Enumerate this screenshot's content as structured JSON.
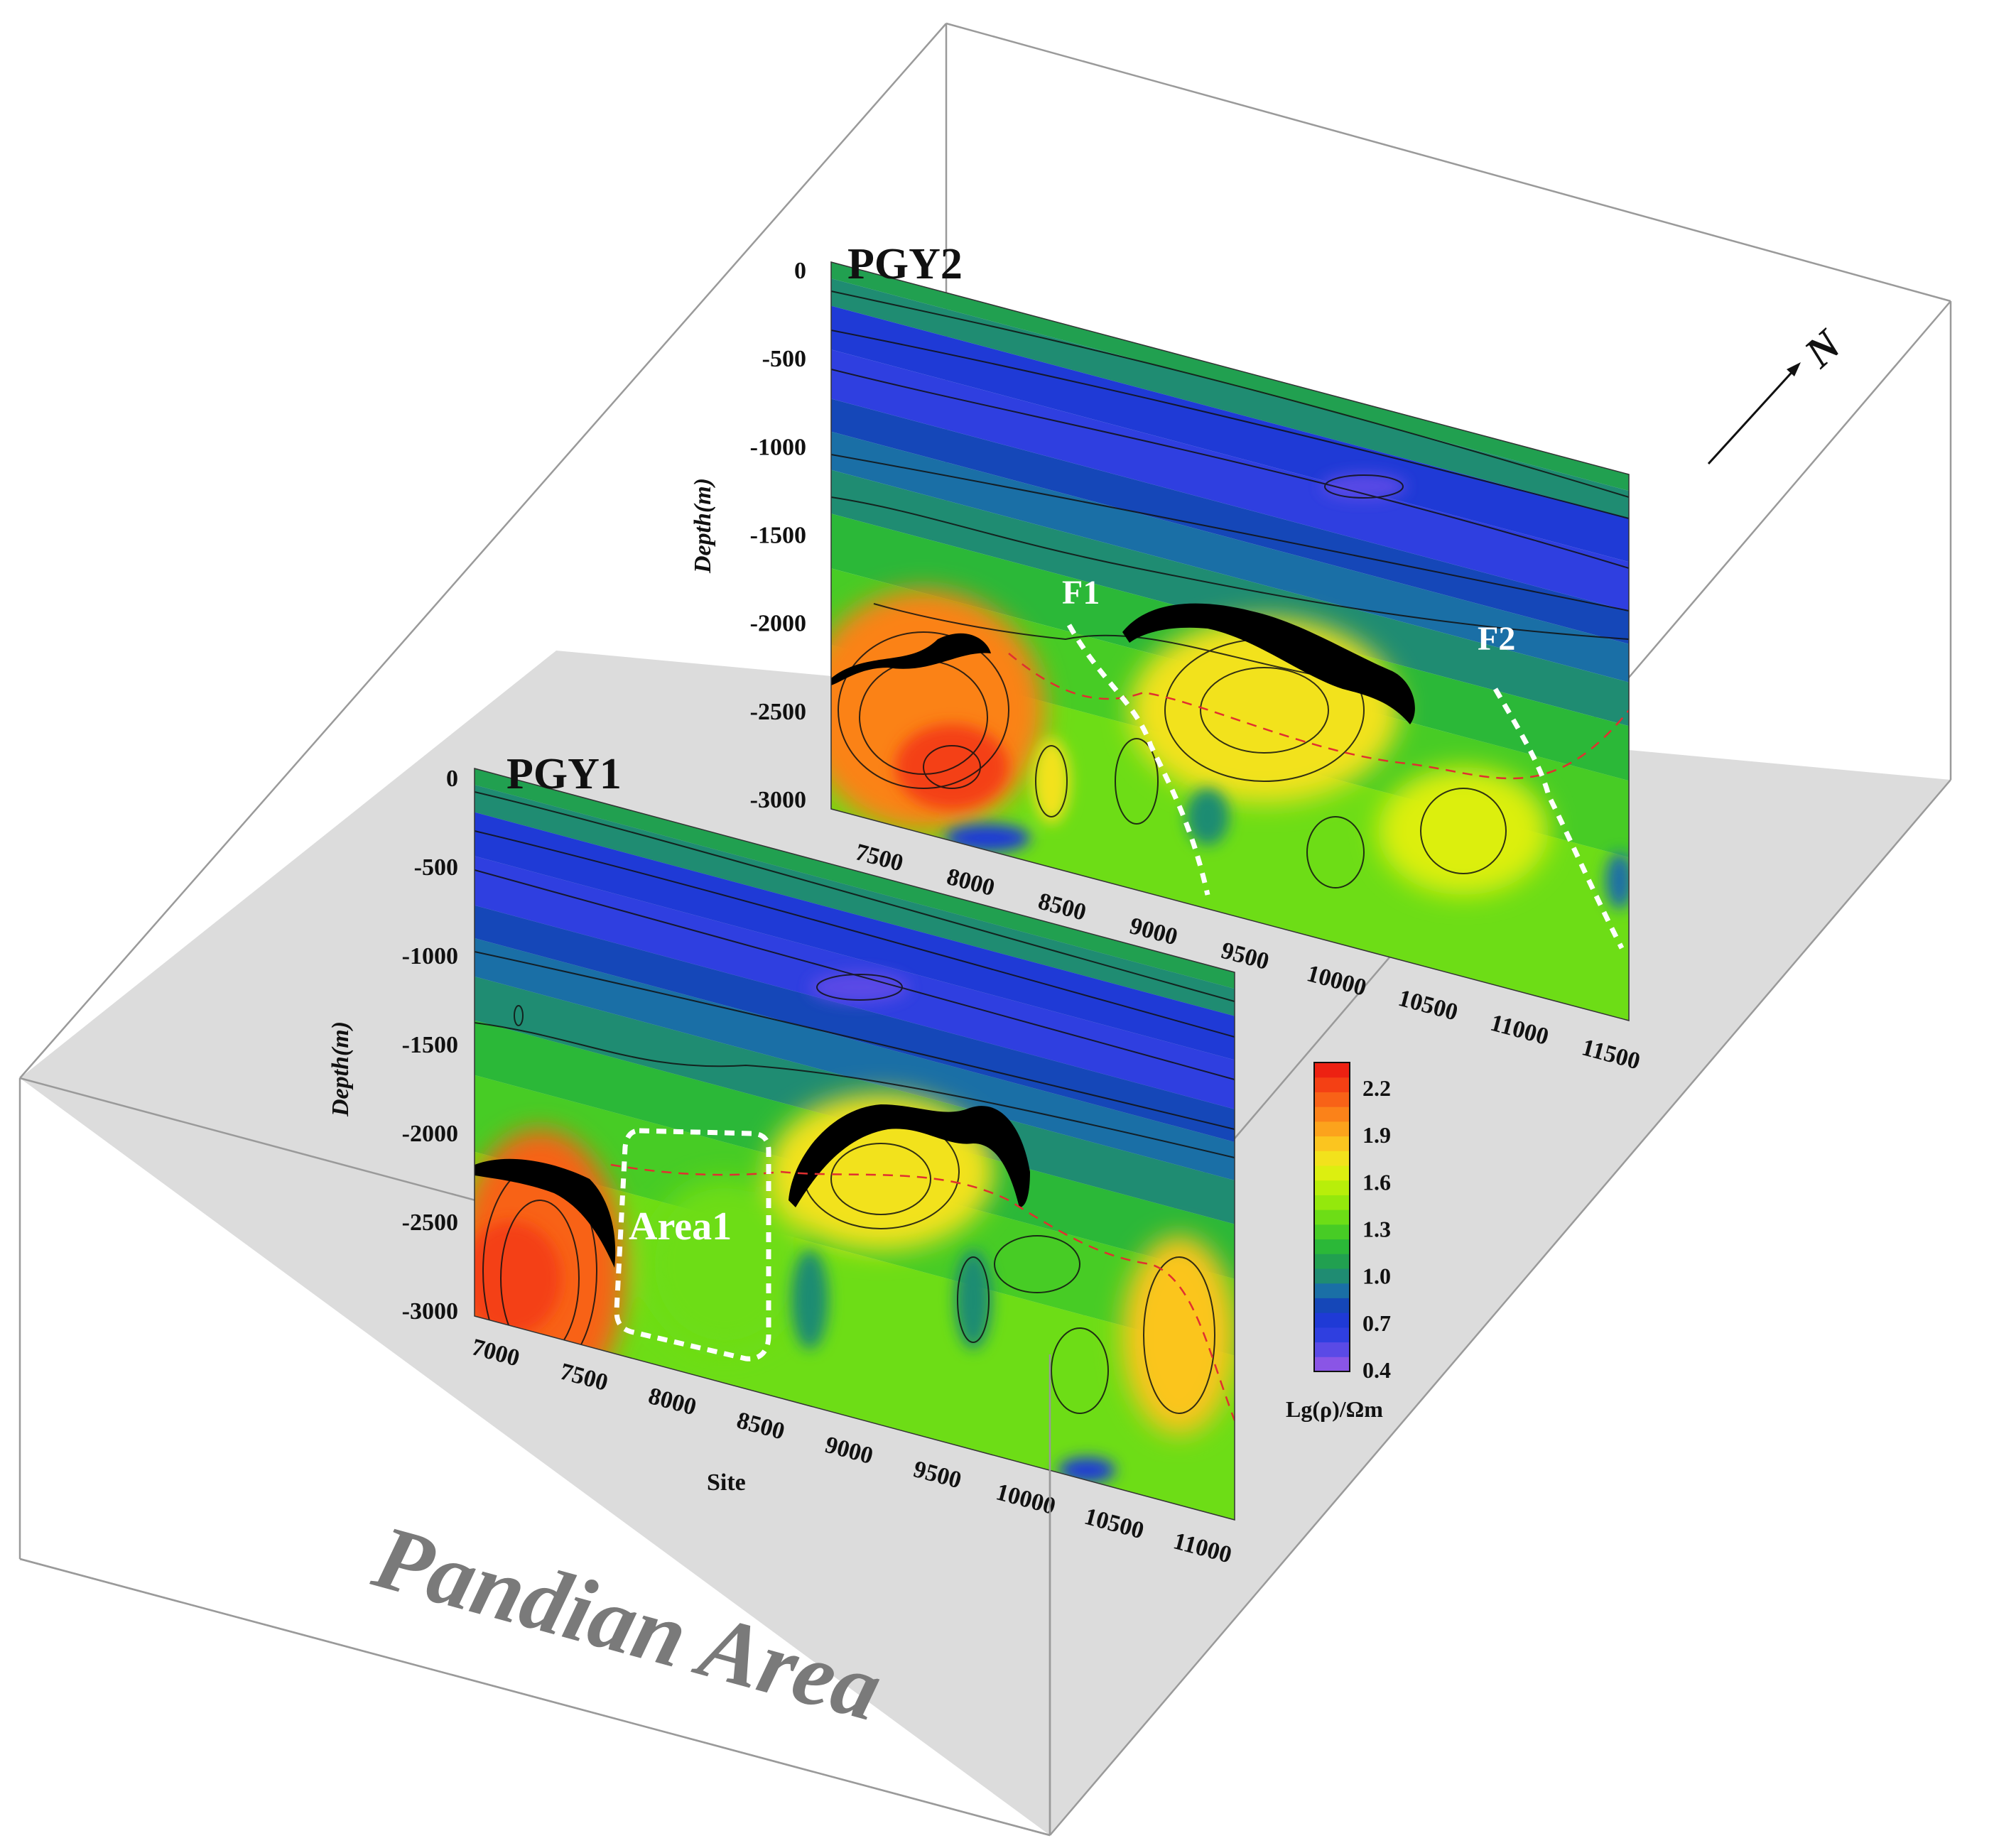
{
  "region_label": "Pandian Area",
  "north_label": "N",
  "colors": {
    "box_floor": "#dcdcdc",
    "box_edge": "#9a9a9a",
    "fault_line": "#ffffff",
    "boundary_dash": "#e03030",
    "high_res_body": "#000000"
  },
  "colorbar": {
    "title": "Lg(ρ)/Ωm",
    "ticks": [
      "2.2",
      "1.9",
      "1.6",
      "1.3",
      "1.0",
      "0.7",
      "0.4"
    ],
    "min": 0.4,
    "max": 2.3,
    "palette": [
      "#8a55e6",
      "#5a4ae6",
      "#2f3fe0",
      "#1f3ad6",
      "#1547b8",
      "#1a6fa6",
      "#1f8c72",
      "#21a050",
      "#2bb838",
      "#47cc25",
      "#6ddd16",
      "#94e80c",
      "#b8ee0a",
      "#dcef10",
      "#f2e21c",
      "#fbc51f",
      "#fca31c",
      "#fb8219",
      "#f86217",
      "#f44014",
      "#ed2112"
    ]
  },
  "profiles": [
    {
      "id": "PGY1",
      "title": "PGY1",
      "depth_label": "Depth(m)",
      "site_label": "Site",
      "depth_ticks": [
        "0",
        "-500",
        "-1000",
        "-1500",
        "-2000",
        "-2500",
        "-3000"
      ],
      "site_ticks": [
        "7000",
        "7500",
        "8000",
        "8500",
        "9000",
        "9500",
        "10000",
        "10500",
        "11000"
      ],
      "annotations": [
        "Area1"
      ]
    },
    {
      "id": "PGY2",
      "title": "PGY2",
      "depth_label": "Depth(m)",
      "site_ticks": [
        "7500",
        "8000",
        "8500",
        "9000",
        "9500",
        "10000",
        "10500",
        "11000",
        "11500"
      ],
      "depth_ticks": [
        "0",
        "-500",
        "-1000",
        "-1500",
        "-2000",
        "-2500",
        "-3000"
      ],
      "annotations": [
        "F1",
        "F2"
      ]
    }
  ]
}
